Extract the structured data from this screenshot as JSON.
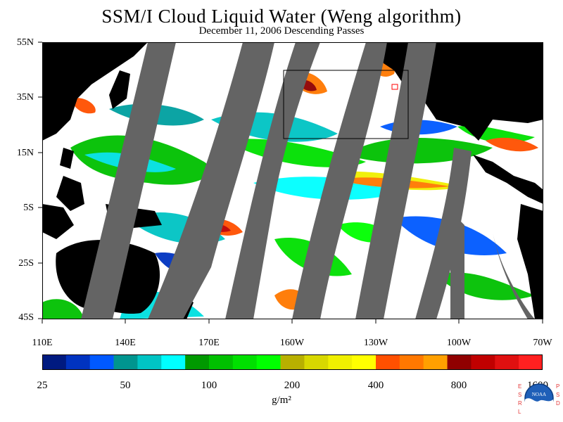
{
  "title": "SSM/I Cloud Liquid Water (Weng algorithm)",
  "subtitle": "December 11, 2006  Descending Passes",
  "lat_labels": [
    "55N",
    "35N",
    "15N",
    "5S",
    "25S",
    "45S"
  ],
  "lon_labels": [
    "110E",
    "140E",
    "170E",
    "160W",
    "130W",
    "100W",
    "70W"
  ],
  "colorbar": {
    "ticks": [
      "25",
      "50",
      "100",
      "200",
      "400",
      "800",
      "1600"
    ],
    "unit": "g/m²",
    "colors": [
      "#001a80",
      "#0033c0",
      "#0059ff",
      "#00958f",
      "#00c4c4",
      "#00ffff",
      "#009900",
      "#00c000",
      "#00e000",
      "#00ff00",
      "#b8b000",
      "#d8d800",
      "#f0f000",
      "#ffff00",
      "#ff5000",
      "#ff7800",
      "#ffa000",
      "#900000",
      "#c00000",
      "#e01010",
      "#ff2020"
    ]
  },
  "colors": {
    "land": "#000000",
    "no_data_swath": "#646464",
    "background": "#ffffff"
  },
  "logo": {
    "esrl": "ESRL",
    "psd": "PSD",
    "noaa": "NOAA"
  }
}
